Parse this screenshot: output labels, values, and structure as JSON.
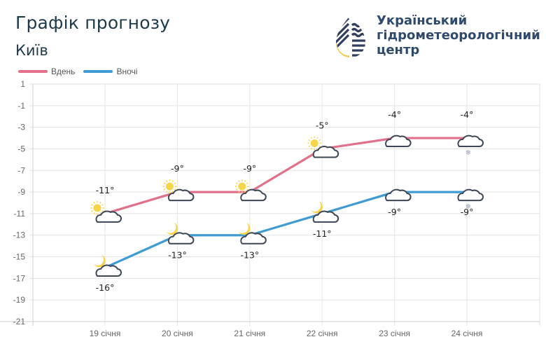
{
  "header": {
    "title": "Графік прогнозу",
    "city": "Київ"
  },
  "org": {
    "line1": "Український",
    "line2": "гідрометеорологічний",
    "line3": "центр"
  },
  "legend": [
    {
      "label": "Вдень",
      "color": "#e2708a"
    },
    {
      "label": "Вночі",
      "color": "#3f9bd4"
    }
  ],
  "chart_data": {
    "type": "line",
    "title": "Графік прогнозу",
    "subtitle": "Київ",
    "categories": [
      "19 січня",
      "20 січня",
      "21 січня",
      "22 січня",
      "23 січня",
      "24 січня"
    ],
    "series": [
      {
        "name": "Вдень",
        "color": "#e2708a",
        "values": [
          -11,
          -9,
          -9,
          -5,
          -4,
          -4
        ],
        "labels": [
          "-11°",
          "-9°",
          "-9°",
          "-5°",
          "-4°",
          "-4°"
        ],
        "icons": [
          "sun-cloud",
          "sun-cloud",
          "sun-cloud",
          "sun-cloud",
          "cloud",
          "cloud-snow"
        ]
      },
      {
        "name": "Вночі",
        "color": "#3f9bd4",
        "values": [
          -16,
          -13,
          -13,
          -11,
          -9,
          -9
        ],
        "labels": [
          "-16°",
          "-13°",
          "-13°",
          "-11°",
          "-9°",
          "-9°"
        ],
        "icons": [
          "moon-cloud",
          "moon-cloud",
          "moon-cloud",
          "moon-cloud",
          "cloud",
          "cloud-snow"
        ]
      }
    ],
    "yticks": [
      1,
      -1,
      -3,
      -5,
      -7,
      -9,
      -11,
      -13,
      -15,
      -17,
      -19,
      -21
    ],
    "ylim": [
      -21,
      1
    ],
    "xlabel": "",
    "ylabel": "",
    "grid": true,
    "legend_position": "top-left"
  }
}
